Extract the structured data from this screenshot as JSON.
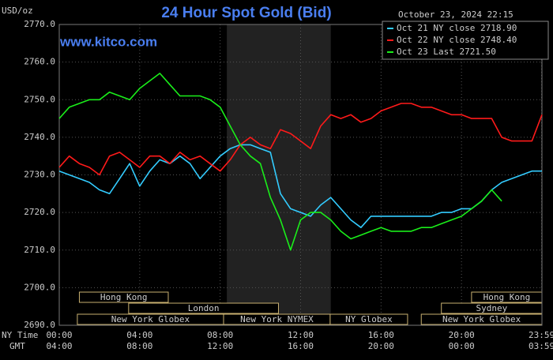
{
  "chart_data": {
    "type": "line",
    "title": "24 Hour Spot Gold (Bid)",
    "unit_label": "USD/oz",
    "watermark": "www.kitco.com",
    "timestamp": "October 23, 2024 22:15",
    "x_row_labels": [
      "NY Time",
      "GMT"
    ],
    "x": [
      0,
      0.5,
      1,
      1.5,
      2,
      2.5,
      3,
      3.5,
      4,
      4.5,
      5,
      5.5,
      6,
      6.5,
      7,
      7.5,
      8,
      8.5,
      9,
      9.5,
      10,
      10.5,
      11,
      11.5,
      12,
      12.5,
      13,
      13.5,
      14,
      14.5,
      15,
      15.5,
      16,
      16.5,
      17,
      17.5,
      18,
      18.5,
      19,
      19.5,
      20,
      20.5,
      21,
      21.5,
      22,
      22.5,
      23,
      23.5,
      24
    ],
    "series": [
      {
        "name": "Oct 21 NY close 2718.90",
        "color": "#33ccff",
        "values": [
          2731,
          2730,
          2729,
          2728,
          2726,
          2725,
          2729,
          2733,
          2727,
          2731,
          2734,
          2733,
          2735,
          2733,
          2729,
          2732,
          2735,
          2737,
          2738,
          2738,
          2737,
          2736,
          2725,
          2721,
          2720,
          2719,
          2722,
          2724,
          2721,
          2718,
          2716,
          2719,
          2719,
          2719,
          2719,
          2719,
          2719,
          2719,
          2720,
          2720,
          2721,
          2721,
          2723,
          2726,
          2728,
          2729,
          2730,
          2731,
          2731
        ]
      },
      {
        "name": "Oct 22 NY close 2748.40",
        "color": "#ff1a1a",
        "values": [
          2732,
          2735,
          2733,
          2732,
          2730,
          2735,
          2736,
          2734,
          2732,
          2735,
          2735,
          2733,
          2736,
          2734,
          2735,
          2733,
          2731,
          2734,
          2738,
          2740,
          2738,
          2737,
          2742,
          2741,
          2739,
          2737,
          2743,
          2746,
          2745,
          2746,
          2744,
          2745,
          2747,
          2748,
          2749,
          2749,
          2748,
          2748,
          2747,
          2746,
          2746,
          2745,
          2745,
          2745,
          2740,
          2739,
          2739,
          2739,
          2746
        ]
      },
      {
        "name": "Oct 23 Last 2721.50",
        "color": "#1aee1a",
        "values": [
          2745,
          2748,
          2749,
          2750,
          2750,
          2752,
          2751,
          2750,
          2753,
          2755,
          2757,
          2754,
          2751,
          2751,
          2751,
          2750,
          2748,
          2743,
          2738,
          2735,
          2733,
          2724,
          2718,
          2710,
          2718,
          2720,
          2720,
          2718,
          2715,
          2713,
          2714,
          2715,
          2716,
          2715,
          2715,
          2715,
          2716,
          2716,
          2717,
          2718,
          2719,
          2721,
          2723,
          2726,
          2723,
          null,
          null,
          null,
          null
        ]
      }
    ],
    "xlim": [
      0,
      24
    ],
    "xticks": [
      {
        "value": 0,
        "label": "00:00"
      },
      {
        "value": 4,
        "label": "04:00"
      },
      {
        "value": 8,
        "label": "08:00"
      },
      {
        "value": 12,
        "label": "12:00"
      },
      {
        "value": 16,
        "label": "16:00"
      },
      {
        "value": 20,
        "label": "20:00"
      },
      {
        "value": 23.983,
        "label": "23:59"
      }
    ],
    "gmt_labels": [
      "04:00",
      "08:00",
      "12:00",
      "16:00",
      "20:00",
      "00:00",
      "03:59"
    ],
    "ylim": [
      2690,
      2770
    ],
    "yticks": [
      {
        "value": 2690,
        "label": "2690.0"
      },
      {
        "value": 2700,
        "label": "2700.0"
      },
      {
        "value": 2710,
        "label": "2710.0"
      },
      {
        "value": 2720,
        "label": "2720.0"
      },
      {
        "value": 2730,
        "label": "2730.0"
      },
      {
        "value": 2740,
        "label": "2740.0"
      },
      {
        "value": 2750,
        "label": "2750.0"
      },
      {
        "value": 2760,
        "label": "2760.0"
      },
      {
        "value": 2770,
        "label": "2770.0"
      }
    ],
    "grid": true,
    "legend": "top-right",
    "shaded": [
      8.333,
      13.5
    ],
    "session_rows": [
      [
        {
          "label": "Hong Kong",
          "start": 1,
          "end": 5.42
        },
        {
          "label": "Hong Kong",
          "start": 20.5,
          "end": 24
        }
      ],
      [
        {
          "label": "London",
          "start": 3.45,
          "end": 10.9
        },
        {
          "label": "Sydney",
          "start": 19,
          "end": 24
        }
      ],
      [
        {
          "label": "New York Globex",
          "start": 0.9,
          "end": 8.17
        },
        {
          "label": "New York NYMEX",
          "start": 8.17,
          "end": 13.47
        },
        {
          "label": "NY Globex",
          "start": 13.47,
          "end": 17.32
        },
        {
          "label": "New York Globex",
          "start": 18,
          "end": 24
        }
      ]
    ]
  }
}
